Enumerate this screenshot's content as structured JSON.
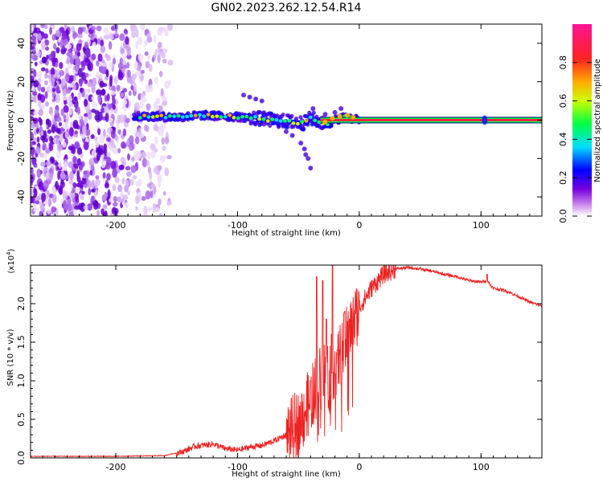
{
  "title": "GN02.2023.262.12.54.R14",
  "chart_data": [
    {
      "type": "heatmap",
      "xlabel": "Height of straight line (km)",
      "ylabel": "Frequency (Hz)",
      "xlim": [
        -270,
        150
      ],
      "ylim": [
        -50,
        50
      ],
      "xticks": [
        -200,
        -100,
        0,
        100
      ],
      "yticks": [
        -40,
        -20,
        0,
        20,
        40
      ],
      "colorbar": {
        "label": "Normalized spectral amplitude",
        "range": [
          0,
          1
        ],
        "ticks": [
          "0.0",
          "0.2",
          "0.4",
          "0.6",
          "0.8"
        ],
        "colormap": [
          "#ffffff",
          "#cc88ee",
          "#7700dd",
          "#0000ff",
          "#00ddff",
          "#00ff44",
          "#ccff00",
          "#ffaa00",
          "#ff2222",
          "#ff1493"
        ]
      },
      "noise_region_x": [
        -270,
        -155
      ],
      "ridge": {
        "x": [
          -210,
          -190,
          -170,
          -150,
          -130,
          -110,
          -95,
          -85,
          -70,
          -55,
          -45,
          -40,
          -35,
          -30,
          -25,
          -20,
          -15,
          -10,
          -5,
          0,
          50,
          100,
          150
        ],
        "freq": [
          1,
          2,
          2,
          1.5,
          2.5,
          2,
          1.5,
          1,
          0,
          -1,
          -1.5,
          1,
          0,
          -2,
          -2,
          0,
          1,
          2,
          0.5,
          0,
          0,
          0,
          0
        ]
      }
    },
    {
      "type": "line",
      "xlabel": "Height of straight line (km)",
      "ylabel": "SNR (10 * v/v)",
      "yscale_label": "(x10",
      "yscale_exp": "4",
      "yscale_close": ")",
      "xlim": [
        -270,
        150
      ],
      "ylim": [
        0,
        2.5
      ],
      "xticks": [
        -200,
        -100,
        0,
        100
      ],
      "yticks": [
        0.0,
        0.5,
        1.0,
        1.5,
        2.0
      ],
      "series": [
        {
          "color": "#ee2222",
          "x": [
            -270,
            -200,
            -160,
            -145,
            -135,
            -120,
            -110,
            -100,
            -90,
            -80,
            -70,
            -60,
            -50,
            -45,
            -40,
            -35,
            -30,
            -25,
            -20,
            -15,
            -10,
            -5,
            0,
            10,
            20,
            30,
            40,
            50,
            60,
            70,
            80,
            90,
            100,
            105,
            110,
            120,
            130,
            140,
            150
          ],
          "y": [
            0.02,
            0.02,
            0.03,
            0.08,
            0.15,
            0.18,
            0.12,
            0.1,
            0.14,
            0.16,
            0.22,
            0.3,
            0.45,
            0.6,
            0.75,
            0.95,
            1.1,
            1.15,
            1.2,
            1.35,
            1.55,
            1.75,
            1.95,
            2.2,
            2.38,
            2.45,
            2.47,
            2.45,
            2.42,
            2.38,
            2.35,
            2.3,
            2.28,
            2.3,
            2.2,
            2.17,
            2.1,
            2.02,
            1.97
          ],
          "spikes": [
            {
              "x": -40,
              "y": 1.0
            },
            {
              "x": -35,
              "y": 2.35
            },
            {
              "x": -30,
              "y": 2.3
            },
            {
              "x": -27,
              "y": 1.8
            },
            {
              "x": -22,
              "y": 2.5
            },
            {
              "x": -18,
              "y": 1.4
            },
            {
              "x": -12,
              "y": 1.9
            },
            {
              "x": -8,
              "y": 1.8
            },
            {
              "x": 105,
              "y": 2.38
            }
          ]
        }
      ]
    }
  ]
}
